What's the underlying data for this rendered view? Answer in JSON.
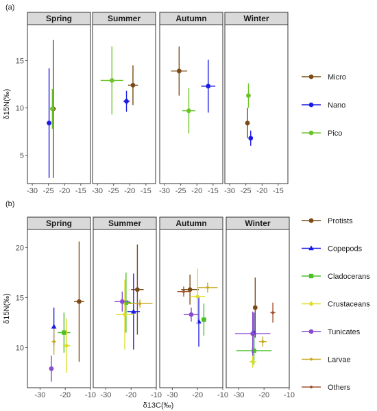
{
  "colors": {
    "Micro": "#7a4a14",
    "Nano": "#1a1ae6",
    "Pico": "#6cc42a",
    "Protists": "#7a4a14",
    "Copepods": "#1a1ae6",
    "Cladocerans": "#4cbf2a",
    "Crustaceans": "#dede2a",
    "Tunicates": "#8a4ad0",
    "Larvae": "#c8a820",
    "Others": "#a0502a"
  },
  "chart_data": [
    {
      "type": "scatter",
      "panel_label": "(a)",
      "facets": [
        "Spring",
        "Summer",
        "Autumn",
        "Winter"
      ],
      "xlabel": "",
      "ylabel": "δ15N(‰)",
      "xlim": [
        -31.5,
        -12
      ],
      "ylim": [
        2,
        18.8
      ],
      "xticks": [
        -30,
        -25,
        -20,
        -15
      ],
      "yticks": [
        5,
        10,
        15
      ],
      "show_x_tick_labels": true,
      "grid": false,
      "legend": {
        "position": "right",
        "entries": [
          "Micro",
          "Nano",
          "Pico"
        ]
      },
      "series": [
        {
          "name": "Micro",
          "marker": "circle",
          "points": [
            {
              "facet": "Spring",
              "x": -23.5,
              "y": 9.9,
              "xerr": 0.8,
              "yerr": 7.3
            },
            {
              "facet": "Summer",
              "x": -19.0,
              "y": 12.4,
              "xerr": 1.5,
              "yerr": 2.1
            },
            {
              "facet": "Autumn",
              "x": -25.5,
              "y": 13.9,
              "xerr": 2.5,
              "yerr": 2.6
            },
            {
              "facet": "Winter",
              "x": -24.5,
              "y": 8.4,
              "xerr": 0.4,
              "yerr": 1.6
            }
          ]
        },
        {
          "name": "Nano",
          "marker": "circle",
          "points": [
            {
              "facet": "Spring",
              "x": -24.8,
              "y": 8.4,
              "xerr": 0.5,
              "yerr": 5.8
            },
            {
              "facet": "Summer",
              "x": -21.0,
              "y": 10.7,
              "xerr": 1.0,
              "yerr": 1.1
            },
            {
              "facet": "Autumn",
              "x": -16.5,
              "y": 12.3,
              "xerr": 2.2,
              "yerr": 2.8
            },
            {
              "facet": "Winter",
              "x": -23.5,
              "y": 6.8,
              "xerr": 0.5,
              "yerr": 0.8
            }
          ]
        },
        {
          "name": "Pico",
          "marker": "circle",
          "points": [
            {
              "facet": "Spring",
              "x": -23.8,
              "y": 9.9,
              "xerr": 0.6,
              "yerr": 2.1
            },
            {
              "facet": "Summer",
              "x": -25.5,
              "y": 12.9,
              "xerr": 3.5,
              "yerr": 3.6
            },
            {
              "facet": "Autumn",
              "x": -22.5,
              "y": 9.7,
              "xerr": 2.0,
              "yerr": 2.4
            },
            {
              "facet": "Winter",
              "x": -24.2,
              "y": 11.3,
              "xerr": 0.3,
              "yerr": 1.3
            }
          ]
        }
      ]
    },
    {
      "type": "scatter",
      "panel_label": "(b)",
      "facets": [
        "Spring",
        "Summer",
        "Autumn",
        "Winter"
      ],
      "xlabel": "δ13C(‰)",
      "ylabel": "δ15N(‰)",
      "xlim": [
        -35,
        -10
      ],
      "ylim": [
        6,
        21.8
      ],
      "xticks": [
        -30,
        -20,
        -10
      ],
      "yticks": [
        10,
        15,
        20
      ],
      "show_x_tick_labels": true,
      "grid": false,
      "legend": {
        "position": "right",
        "entries": [
          "Protists",
          "Copepods",
          "Cladocerans",
          "Crustaceans",
          "Tunicates",
          "Larvae",
          "Others"
        ]
      },
      "series": [
        {
          "name": "Protists",
          "marker": "circle",
          "points": [
            {
              "facet": "Spring",
              "x": -14.5,
              "y": 14.6,
              "xerr": 2.0,
              "yerr": 6.0
            },
            {
              "facet": "Summer",
              "x": -17.5,
              "y": 15.8,
              "xerr": 2.5,
              "yerr": 4.5
            },
            {
              "facet": "Autumn",
              "x": -23.0,
              "y": 15.8,
              "xerr": 3.5,
              "yerr": 1.5
            },
            {
              "facet": "Winter",
              "x": -23.5,
              "y": 14.0,
              "xerr": 0.5,
              "yerr": 3.0
            }
          ]
        },
        {
          "name": "Copepods",
          "marker": "triangle",
          "points": [
            {
              "facet": "Spring",
              "x": -24.5,
              "y": 12.1,
              "xerr": 0.3,
              "yerr": 1.9
            },
            {
              "facet": "Summer",
              "x": -19.0,
              "y": 13.6,
              "xerr": 2.5,
              "yerr": 3.8
            },
            {
              "facet": "Autumn",
              "x": -19.5,
              "y": 12.6,
              "xerr": 0.5,
              "yerr": 2.5
            },
            {
              "facet": "Winter",
              "x": -24.0,
              "y": 11.5,
              "xerr": 0.5,
              "yerr": 2.0
            }
          ]
        },
        {
          "name": "Cladocerans",
          "marker": "square",
          "points": [
            {
              "facet": "Spring",
              "x": -20.5,
              "y": 11.5,
              "xerr": 2.5,
              "yerr": 2.0
            },
            {
              "facet": "Summer",
              "x": -22.0,
              "y": 14.5,
              "xerr": 2.0,
              "yerr": 3.0
            },
            {
              "facet": "Autumn",
              "x": -17.5,
              "y": 12.8,
              "xerr": 1.0,
              "yerr": 1.6
            },
            {
              "facet": "Winter",
              "x": -24.0,
              "y": 9.7,
              "xerr": 7.0,
              "yerr": 1.4
            }
          ]
        },
        {
          "name": "Crustaceans",
          "marker": "diamond",
          "points": [
            {
              "facet": "Spring",
              "x": -19.5,
              "y": 10.2,
              "xerr": 1.5,
              "yerr": 2.7
            },
            {
              "facet": "Summer",
              "x": -22.5,
              "y": 13.3,
              "xerr": 3.5,
              "yerr": 3.5
            },
            {
              "facet": "Autumn",
              "x": -20.0,
              "y": 15.1,
              "xerr": 3.0,
              "yerr": 2.8
            },
            {
              "facet": "Winter",
              "x": -24.5,
              "y": 8.6,
              "xerr": 1.5,
              "yerr": 0.6
            }
          ]
        },
        {
          "name": "Tunicates",
          "marker": "circle",
          "points": [
            {
              "facet": "Spring",
              "x": -25.5,
              "y": 7.9,
              "xerr": 0.5,
              "yerr": 1.3
            },
            {
              "facet": "Summer",
              "x": -23.5,
              "y": 14.6,
              "xerr": 3.0,
              "yerr": 1.0
            },
            {
              "facet": "Autumn",
              "x": -22.5,
              "y": 13.3,
              "xerr": 3.0,
              "yerr": 0.7
            },
            {
              "facet": "Winter",
              "x": -24.5,
              "y": 11.4,
              "xerr": 7.0,
              "yerr": 2.2
            }
          ]
        },
        {
          "name": "Larvae",
          "marker": "dot",
          "points": [
            {
              "facet": "Spring",
              "x": -24.5,
              "y": 10.6,
              "xerr": 0.8,
              "yerr": 1.3
            },
            {
              "facet": "Summer",
              "x": -16.5,
              "y": 14.4,
              "xerr": 5.0,
              "yerr": 0.4
            },
            {
              "facet": "Autumn",
              "x": -16.0,
              "y": 16.0,
              "xerr": 4.0,
              "yerr": 0.5
            },
            {
              "facet": "Winter",
              "x": -20.5,
              "y": 10.6,
              "xerr": 1.5,
              "yerr": 0.5
            }
          ]
        },
        {
          "name": "Others",
          "marker": "dot",
          "points": [
            {
              "facet": "Autumn",
              "x": -25.5,
              "y": 15.6,
              "xerr": 2.5,
              "yerr": 0.5
            },
            {
              "facet": "Winter",
              "x": -16.5,
              "y": 13.5,
              "xerr": 1.0,
              "yerr": 1.0
            }
          ]
        }
      ]
    }
  ]
}
